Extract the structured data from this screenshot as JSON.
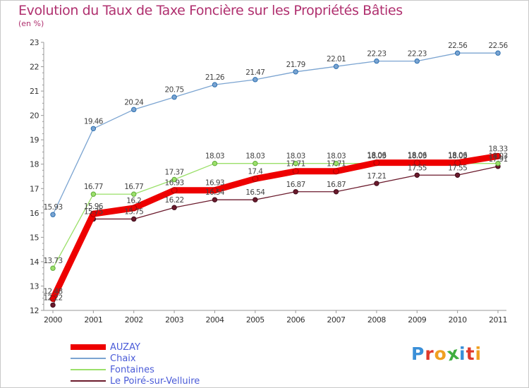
{
  "chart_data": {
    "type": "line",
    "title": "Evolution du Taux de Taxe Foncière sur les Propriétés Bâties",
    "ylabel": "(en %)",
    "xlabel": "",
    "categories": [
      "2000",
      "2001",
      "2002",
      "2003",
      "2004",
      "2005",
      "2006",
      "2007",
      "2008",
      "2009",
      "2010",
      "2011"
    ],
    "ylim": [
      12,
      23
    ],
    "yticks": [
      "12",
      "13",
      "14",
      "15",
      "16",
      "17",
      "18",
      "19",
      "20",
      "21",
      "22",
      "23"
    ],
    "grid": false,
    "legend_position": "bottom-left",
    "series": [
      {
        "name": "Le Poiré-sur-Velluire",
        "color": "#6b1a2c",
        "values": [
          12.22,
          15.75,
          15.75,
          16.22,
          16.54,
          16.54,
          16.87,
          16.87,
          17.21,
          17.55,
          17.55,
          17.91
        ],
        "labels": [
          "12.22",
          "15.75",
          "15.75",
          "16.22",
          "16.54",
          "16.54",
          "16.87",
          "16.87",
          "17.21",
          "17.55",
          "17.55",
          "17.91"
        ]
      },
      {
        "name": "Fontaines",
        "color": "#9be06a",
        "values": [
          13.73,
          16.77,
          16.77,
          17.37,
          18.03,
          18.03,
          18.03,
          18.03,
          18.03,
          18.03,
          18.03,
          18.03
        ],
        "labels": [
          "13.73",
          "16.77",
          "16.77",
          "17.37",
          "18.03",
          "18.03",
          "18.03",
          "18.03",
          "18.03",
          "18.03",
          "18.03",
          "18.03"
        ]
      },
      {
        "name": "Chaix",
        "color": "#7ba4d1",
        "values": [
          15.93,
          19.46,
          20.24,
          20.75,
          21.26,
          21.47,
          21.79,
          22.01,
          22.23,
          22.23,
          22.56,
          22.56
        ],
        "labels": [
          "15.93",
          "19.46",
          "20.24",
          "20.75",
          "21.26",
          "21.47",
          "21.79",
          "22.01",
          "22.23",
          "22.23",
          "22.56",
          "22.56"
        ]
      },
      {
        "name": "AUZAY",
        "color": "#ee0000",
        "values": [
          12.48,
          15.96,
          16.2,
          16.93,
          16.93,
          17.4,
          17.71,
          17.71,
          18.06,
          18.06,
          18.06,
          18.33
        ],
        "labels": [
          "12.48",
          "15.96",
          "16.2",
          "16.93",
          "16.93",
          "17.4",
          "17.71",
          "17.71",
          "18.06",
          "18.06",
          "18.06",
          "18.33"
        ]
      }
    ]
  },
  "legend": {
    "items": [
      {
        "label": "AUZAY",
        "color": "#ee0000"
      },
      {
        "label": "Chaix",
        "color": "#7ba4d1"
      },
      {
        "label": "Fontaines",
        "color": "#9be06a"
      },
      {
        "label": "Le Poiré-sur-Velluire",
        "color": "#6b1a2c"
      }
    ]
  },
  "logo": {
    "text": "Proxiti",
    "letters": [
      {
        "ch": "P",
        "color": "#3a8fd8"
      },
      {
        "ch": "r",
        "color": "#e0392b"
      },
      {
        "ch": "o",
        "color": "#f0a020"
      },
      {
        "ch": "x",
        "color": "#3fae3f"
      },
      {
        "ch": "i",
        "color": "#3a8fd8"
      },
      {
        "ch": "t",
        "color": "#e0392b"
      },
      {
        "ch": "i",
        "color": "#f0a020"
      }
    ]
  }
}
